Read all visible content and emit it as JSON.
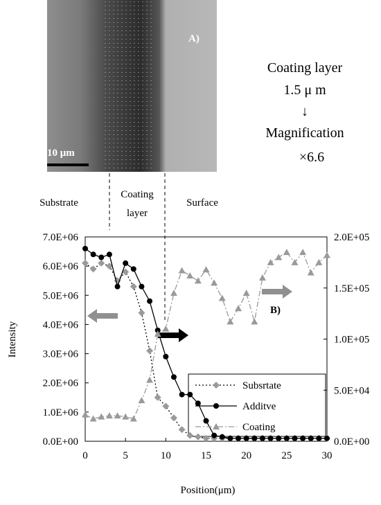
{
  "image": {
    "panel_label": "A)",
    "scale_bar": "10 μm",
    "notes": [
      "Coating layer",
      "1.5 μ m",
      "↓",
      "Magnification",
      "×6.6"
    ],
    "regions": [
      [
        "Substrate"
      ],
      [
        "Coating",
        "layer"
      ],
      [
        "Surface"
      ]
    ]
  },
  "chart_data": {
    "type": "line",
    "annotation": "B)",
    "x_label": "Position(μm)",
    "y_label": "Intensity",
    "x": [
      0,
      1,
      2,
      3,
      4,
      5,
      6,
      7,
      8,
      9,
      10,
      11,
      12,
      13,
      14,
      15,
      16,
      17,
      18,
      19,
      20,
      21,
      22,
      23,
      24,
      25,
      26,
      27,
      28,
      29,
      30
    ],
    "xlim": [
      0,
      30
    ],
    "xticks": [
      0,
      5,
      10,
      15,
      20,
      25,
      30
    ],
    "ylim": [
      0,
      7000000
    ],
    "yticks": [
      {
        "value": 0,
        "label": "0.0E+00"
      },
      {
        "value": 1000000,
        "label": "1.0E+06"
      },
      {
        "value": 2000000,
        "label": "2.0E+06"
      },
      {
        "value": 3000000,
        "label": "3.0E+06"
      },
      {
        "value": 4000000,
        "label": "4.0E+06"
      },
      {
        "value": 5000000,
        "label": "5.0E+06"
      },
      {
        "value": 6000000,
        "label": "6.0E+06"
      },
      {
        "value": 7000000,
        "label": "7.0E+06"
      }
    ],
    "y2lim": [
      0,
      200000
    ],
    "y2ticks": [
      {
        "value": 0,
        "label": "0.0E+00"
      },
      {
        "value": 50000,
        "label": "5.0E+04"
      },
      {
        "value": 100000,
        "label": "1.0E+05"
      },
      {
        "value": 150000,
        "label": "1.5E+05"
      },
      {
        "value": 200000,
        "label": "2.0E+05"
      }
    ],
    "series": [
      {
        "name": "Subsrtate",
        "color": "#000000",
        "marker_color": "#9a9a9a",
        "marker": "diamond",
        "dash": "2,3",
        "values": [
          6100000,
          5900000,
          6100000,
          6000000,
          5500000,
          5800000,
          5300000,
          4400000,
          3100000,
          1500000,
          1200000,
          800000,
          400000,
          200000,
          150000,
          100000,
          100000,
          100000,
          100000,
          100000,
          100000,
          100000,
          100000,
          100000,
          100000,
          100000,
          100000,
          100000,
          100000,
          100000,
          100000
        ]
      },
      {
        "name": "Additve",
        "color": "#000000",
        "marker_color": "#000000",
        "marker": "circle",
        "dash": "",
        "values": [
          6600000,
          6400000,
          6300000,
          6400000,
          5300000,
          6100000,
          5900000,
          5300000,
          4800000,
          3800000,
          2900000,
          2200000,
          1600000,
          1600000,
          1300000,
          700000,
          200000,
          150000,
          100000,
          100000,
          100000,
          100000,
          100000,
          100000,
          100000,
          100000,
          100000,
          100000,
          100000,
          100000,
          100000
        ]
      },
      {
        "name": "Coating",
        "color": "#9a9a9a",
        "marker_color": "#9a9a9a",
        "marker": "triangle",
        "dash": "8,3,2,3",
        "axis": "y2",
        "values": [
          26000,
          22000,
          24000,
          25000,
          25000,
          24000,
          22000,
          40000,
          60000,
          105000,
          110000,
          145000,
          167000,
          162000,
          157000,
          168000,
          155000,
          140000,
          117000,
          130000,
          145000,
          117000,
          160000,
          175000,
          180000,
          185000,
          175000,
          185000,
          165000,
          175000,
          182000
        ]
      }
    ]
  }
}
